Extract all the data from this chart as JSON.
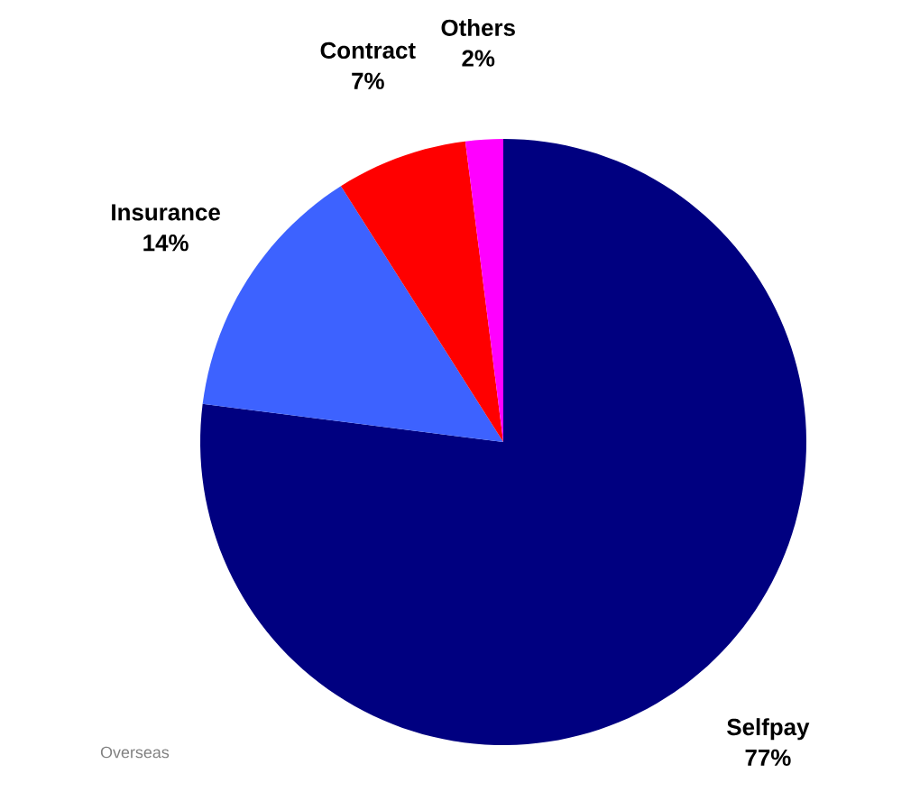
{
  "chart_data": {
    "type": "pie",
    "categories": [
      "Selfpay",
      "Insurance",
      "Contract",
      "Others"
    ],
    "values": [
      77,
      14,
      7,
      2
    ],
    "value_labels": [
      "77%",
      "14%",
      "7%",
      "2%"
    ],
    "colors": [
      "#000080",
      "#3d62ff",
      "#ff0000",
      "#ff00ff"
    ],
    "annotations": [
      "Overseas"
    ]
  }
}
